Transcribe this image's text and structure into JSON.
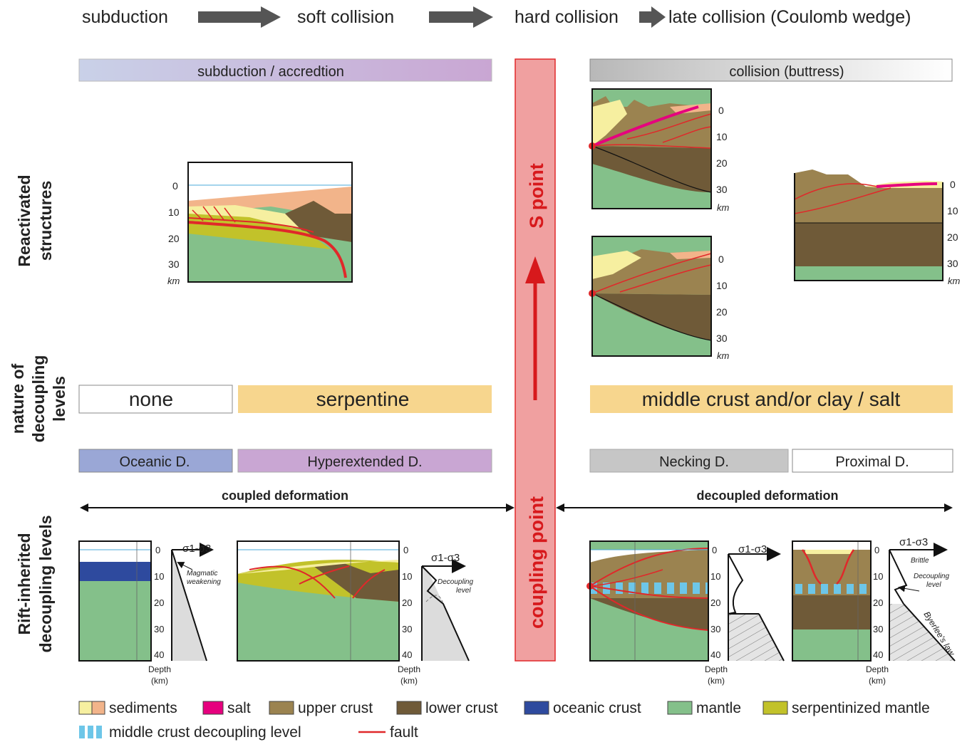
{
  "stages": {
    "s1": "subduction",
    "s2": "soft collision",
    "s3": "hard collision",
    "s4": "late collision (Coulomb wedge)"
  },
  "row_labels": {
    "reactivated_1": "Reactivated",
    "reactivated_2": "structures",
    "nature_1": "nature of",
    "nature_2": "decoupling",
    "nature_3": "levels",
    "rift_1": "Rift-inherited",
    "rift_2": "decoupling levels"
  },
  "bars": {
    "subduction": "subduction / accredtion",
    "collision": "collision (buttress)",
    "none": "none",
    "serpentine": "serpentine",
    "middle_crust": "middle crust and/or clay / salt",
    "oceanic": "Oceanic D.",
    "hyperextended": "Hyperextended D.",
    "necking": "Necking D.",
    "proximal": "Proximal D."
  },
  "central": {
    "s_point": "S point",
    "coupling_point": "coupling point"
  },
  "deformation": {
    "coupled": "coupled deformation",
    "decoupled": "decoupled deformation"
  },
  "axes": {
    "km": "km",
    "depth": "Depth",
    "depth_unit": "(km)",
    "ticks": [
      "0",
      "10",
      "20",
      "30",
      "40"
    ],
    "sigma": "σ1-σ3"
  },
  "annotations": {
    "magmatic_1": "Magmatic",
    "magmatic_2": "weakening",
    "decoupling_1": "Decoupling",
    "decoupling_2": "level",
    "brittle": "Brittle",
    "byerlee": "Byerlee's law"
  },
  "legend": {
    "sediments": "sediments",
    "salt": "salt",
    "upper_crust": "upper crust",
    "lower_crust": "lower crust",
    "oceanic_crust": "oceanic crust",
    "mantle": "mantle",
    "serpentinized": "serpentinized mantle",
    "middle_crust_level": "middle crust decoupling level",
    "fault": "fault"
  },
  "colors": {
    "sediment_yellow": "#f6efa0",
    "sediment_orange": "#f2b48a",
    "salt": "#e6007e",
    "upper_crust": "#9b8350",
    "lower_crust": "#6f5a38",
    "oceanic_crust": "#2e4a9e",
    "mantle": "#84c08a",
    "serpentinized": "#c2c22a",
    "decoupling": "#5bc8f0",
    "fault": "#e0282a",
    "central_bar": "#f0a0a0"
  }
}
